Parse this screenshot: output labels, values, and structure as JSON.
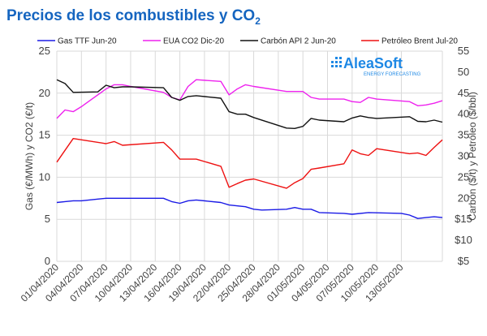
{
  "title": "Precios de los combustibles y CO",
  "title_sub": "2",
  "logo": {
    "brand": "AleaSoft",
    "tagline": "ENERGY FORECASTING"
  },
  "colors": {
    "title": "#1565C0",
    "gas": "#1A1AE6",
    "co2": "#EE22EE",
    "carbon": "#111111",
    "brent": "#EE1111",
    "grid": "#D9D9D9",
    "axis_text": "#404040",
    "logo": "#1E88E5"
  },
  "chart_data": {
    "type": "line",
    "title": "Precios de los combustibles y CO2",
    "ylabel": "Gas (€/MWh) y CO2 (€/t)",
    "y2label": "Carbón ($/t) y Petróleo ($/bbl)",
    "ylim": [
      0,
      25
    ],
    "y2lim": [
      5,
      55
    ],
    "yticks": [
      "0",
      "5",
      "10",
      "15",
      "20",
      "25"
    ],
    "y2ticks": [
      "$5",
      "$10",
      "$15",
      "20",
      "25",
      "30",
      "35",
      "40",
      "45",
      "50",
      "55"
    ],
    "xlim": [
      "2020-04-01",
      "2020-05-18"
    ],
    "xticks": [
      "01/04/2020",
      "04/04/2020",
      "07/04/2020",
      "10/04/2020",
      "13/04/2020",
      "16/04/2020",
      "19/04/2020",
      "22/04/2020",
      "25/04/2020",
      "28/04/2020",
      "01/05/2020",
      "04/05/2020",
      "07/05/2020",
      "10/05/2020",
      "13/05/2020"
    ],
    "legend_position": "top",
    "grid": true,
    "series": [
      {
        "name": "Gas TTF Jun-20",
        "axis": "left",
        "color_key": "gas",
        "points": [
          [
            "2020-04-01",
            7.0
          ],
          [
            "2020-04-02",
            7.1
          ],
          [
            "2020-04-03",
            7.2
          ],
          [
            "2020-04-04",
            7.2
          ],
          [
            "2020-04-06",
            7.4
          ],
          [
            "2020-04-07",
            7.5
          ],
          [
            "2020-04-08",
            7.5
          ],
          [
            "2020-04-09",
            7.5
          ],
          [
            "2020-04-10",
            7.5
          ],
          [
            "2020-04-14",
            7.5
          ],
          [
            "2020-04-15",
            7.1
          ],
          [
            "2020-04-16",
            6.9
          ],
          [
            "2020-04-17",
            7.2
          ],
          [
            "2020-04-18",
            7.3
          ],
          [
            "2020-04-21",
            7.0
          ],
          [
            "2020-04-22",
            6.7
          ],
          [
            "2020-04-24",
            6.5
          ],
          [
            "2020-04-25",
            6.2
          ],
          [
            "2020-04-26",
            6.1
          ],
          [
            "2020-04-29",
            6.2
          ],
          [
            "2020-04-30",
            6.4
          ],
          [
            "2020-05-01",
            6.2
          ],
          [
            "2020-05-02",
            6.2
          ],
          [
            "2020-05-03",
            5.8
          ],
          [
            "2020-05-06",
            5.7
          ],
          [
            "2020-05-07",
            5.6
          ],
          [
            "2020-05-09",
            5.8
          ],
          [
            "2020-05-13",
            5.7
          ],
          [
            "2020-05-14",
            5.5
          ],
          [
            "2020-05-15",
            5.1
          ],
          [
            "2020-05-16",
            5.2
          ],
          [
            "2020-05-17",
            5.3
          ],
          [
            "2020-05-18",
            5.2
          ]
        ]
      },
      {
        "name": "EUA CO2 Dic-20",
        "axis": "left",
        "color_key": "co2",
        "points": [
          [
            "2020-04-01",
            17.0
          ],
          [
            "2020-04-02",
            18.0
          ],
          [
            "2020-04-03",
            17.8
          ],
          [
            "2020-04-04",
            18.4
          ],
          [
            "2020-04-07",
            20.5
          ],
          [
            "2020-04-08",
            21.0
          ],
          [
            "2020-04-09",
            21.0
          ],
          [
            "2020-04-10",
            20.8
          ],
          [
            "2020-04-14",
            20.1
          ],
          [
            "2020-04-15",
            19.5
          ],
          [
            "2020-04-16",
            19.2
          ],
          [
            "2020-04-17",
            20.8
          ],
          [
            "2020-04-18",
            21.6
          ],
          [
            "2020-04-21",
            21.4
          ],
          [
            "2020-04-22",
            19.8
          ],
          [
            "2020-04-23",
            20.5
          ],
          [
            "2020-04-24",
            21.0
          ],
          [
            "2020-04-25",
            20.8
          ],
          [
            "2020-04-29",
            20.2
          ],
          [
            "2020-04-30",
            20.2
          ],
          [
            "2020-05-01",
            20.2
          ],
          [
            "2020-05-02",
            19.5
          ],
          [
            "2020-05-03",
            19.3
          ],
          [
            "2020-05-06",
            19.3
          ],
          [
            "2020-05-07",
            19.0
          ],
          [
            "2020-05-08",
            18.9
          ],
          [
            "2020-05-09",
            19.5
          ],
          [
            "2020-05-10",
            19.3
          ],
          [
            "2020-05-14",
            19.0
          ],
          [
            "2020-05-15",
            18.5
          ],
          [
            "2020-05-16",
            18.6
          ],
          [
            "2020-05-17",
            18.8
          ],
          [
            "2020-05-18",
            19.1
          ]
        ]
      },
      {
        "name": "Carbón API 2 Jun-20",
        "axis": "right",
        "color_key": "carbon",
        "points": [
          [
            "2020-04-01",
            48.2
          ],
          [
            "2020-04-02",
            47.3
          ],
          [
            "2020-04-03",
            45.2
          ],
          [
            "2020-04-06",
            45.3
          ],
          [
            "2020-04-07",
            46.9
          ],
          [
            "2020-04-08",
            46.3
          ],
          [
            "2020-04-09",
            46.5
          ],
          [
            "2020-04-10",
            46.5
          ],
          [
            "2020-04-14",
            46.3
          ],
          [
            "2020-04-15",
            44.0
          ],
          [
            "2020-04-16",
            43.3
          ],
          [
            "2020-04-17",
            44.2
          ],
          [
            "2020-04-18",
            44.4
          ],
          [
            "2020-04-21",
            43.8
          ],
          [
            "2020-04-22",
            40.6
          ],
          [
            "2020-04-23",
            40.0
          ],
          [
            "2020-04-24",
            40.0
          ],
          [
            "2020-04-25",
            39.2
          ],
          [
            "2020-04-29",
            36.7
          ],
          [
            "2020-04-30",
            36.6
          ],
          [
            "2020-05-01",
            37.1
          ],
          [
            "2020-05-02",
            39.0
          ],
          [
            "2020-05-03",
            38.6
          ],
          [
            "2020-05-06",
            38.2
          ],
          [
            "2020-05-07",
            39.1
          ],
          [
            "2020-05-08",
            39.6
          ],
          [
            "2020-05-09",
            39.2
          ],
          [
            "2020-05-10",
            39.0
          ],
          [
            "2020-05-14",
            39.4
          ],
          [
            "2020-05-15",
            38.3
          ],
          [
            "2020-05-16",
            38.2
          ],
          [
            "2020-05-17",
            38.6
          ],
          [
            "2020-05-18",
            38.1
          ]
        ]
      },
      {
        "name": "Petróleo Brent Jul-20",
        "axis": "right",
        "color_key": "brent",
        "points": [
          [
            "2020-04-01",
            28.6
          ],
          [
            "2020-04-02",
            31.4
          ],
          [
            "2020-04-03",
            34.2
          ],
          [
            "2020-04-07",
            33.0
          ],
          [
            "2020-04-08",
            33.5
          ],
          [
            "2020-04-09",
            32.6
          ],
          [
            "2020-04-14",
            33.3
          ],
          [
            "2020-04-15",
            31.5
          ],
          [
            "2020-04-16",
            29.3
          ],
          [
            "2020-04-18",
            29.3
          ],
          [
            "2020-04-21",
            27.6
          ],
          [
            "2020-04-22",
            22.6
          ],
          [
            "2020-04-23",
            23.5
          ],
          [
            "2020-04-24",
            24.3
          ],
          [
            "2020-04-25",
            24.6
          ],
          [
            "2020-04-29",
            22.4
          ],
          [
            "2020-04-30",
            23.7
          ],
          [
            "2020-05-01",
            24.7
          ],
          [
            "2020-05-02",
            26.9
          ],
          [
            "2020-05-03",
            27.2
          ],
          [
            "2020-05-06",
            28.2
          ],
          [
            "2020-05-07",
            31.5
          ],
          [
            "2020-05-08",
            30.6
          ],
          [
            "2020-05-09",
            30.2
          ],
          [
            "2020-05-10",
            31.8
          ],
          [
            "2020-05-14",
            30.6
          ],
          [
            "2020-05-15",
            30.8
          ],
          [
            "2020-05-16",
            30.2
          ],
          [
            "2020-05-17",
            32.1
          ],
          [
            "2020-05-18",
            33.9
          ]
        ]
      }
    ]
  }
}
